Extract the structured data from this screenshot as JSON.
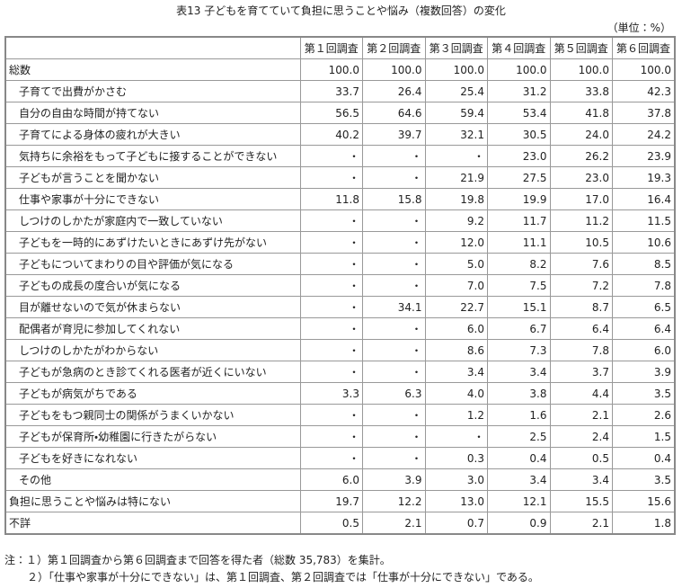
{
  "header": {
    "title": "表13 子どもを育てていて負担に思うことや悩み（複数回答）の変化",
    "unit": "（単位：%）"
  },
  "table": {
    "columns": [
      "第１回調査",
      "第２回調査",
      "第３回調査",
      "第４回調査",
      "第５回調査",
      "第６回調査"
    ],
    "rows": [
      [
        "総数",
        "100.0",
        "100.0",
        "100.0",
        "100.0",
        "100.0",
        "100.0"
      ],
      [
        "子育てで出費がかさむ",
        "33.7",
        "26.4",
        "25.4",
        "31.2",
        "33.8",
        "42.3"
      ],
      [
        "自分の自由な時間が持てない",
        "56.5",
        "64.6",
        "59.4",
        "53.4",
        "41.8",
        "37.8"
      ],
      [
        "子育てによる身体の疲れが大きい",
        "40.2",
        "39.7",
        "32.1",
        "30.5",
        "24.0",
        "24.2"
      ],
      [
        "気持ちに余裕をもって子どもに接することができない",
        "・",
        "・",
        "・",
        "23.0",
        "26.2",
        "23.9"
      ],
      [
        "子どもが言うことを聞かない",
        "・",
        "・",
        "21.9",
        "27.5",
        "23.0",
        "19.3"
      ],
      [
        "仕事や家事が十分にできない",
        "11.8",
        "15.8",
        "19.8",
        "19.9",
        "17.0",
        "16.4"
      ],
      [
        "しつけのしかたが家庭内で一致していない",
        "・",
        "・",
        "9.2",
        "11.7",
        "11.2",
        "11.5"
      ],
      [
        "子どもを一時的にあずけたいときにあずけ先がない",
        "・",
        "・",
        "12.0",
        "11.1",
        "10.5",
        "10.6"
      ],
      [
        "子どもについてまわりの目や評価が気になる",
        "・",
        "・",
        "5.0",
        "8.2",
        "7.6",
        "8.5"
      ],
      [
        "子どもの成長の度合いが気になる",
        "・",
        "・",
        "7.0",
        "7.5",
        "7.2",
        "7.8"
      ],
      [
        "目が離せないので気が休まらない",
        "・",
        "34.1",
        "22.7",
        "15.1",
        "8.7",
        "6.5"
      ],
      [
        "配偶者が育児に参加してくれない",
        "・",
        "・",
        "6.0",
        "6.7",
        "6.4",
        "6.4"
      ],
      [
        "しつけのしかたがわからない",
        "・",
        "・",
        "8.6",
        "7.3",
        "7.8",
        "6.0"
      ],
      [
        "子どもが急病のとき診てくれる医者が近くにいない",
        "・",
        "・",
        "3.4",
        "3.4",
        "3.7",
        "3.9"
      ],
      [
        "子どもが病気がちである",
        "3.3",
        "6.3",
        "4.0",
        "3.8",
        "4.4",
        "3.5"
      ],
      [
        "子どもをもつ親同士の関係がうまくいかない",
        "・",
        "・",
        "1.2",
        "1.6",
        "2.1",
        "2.6"
      ],
      [
        "子どもが保育所・幼稚園に行きたがらない",
        "・",
        "・",
        "・",
        "2.5",
        "2.4",
        "1.5"
      ],
      [
        "子どもを好きになれない",
        "・",
        "・",
        "0.3",
        "0.4",
        "0.5",
        "0.4"
      ],
      [
        "その他",
        "6.0",
        "3.9",
        "3.0",
        "3.4",
        "3.4",
        "3.5"
      ],
      [
        "負担に思うことや悩みは特にない",
        "19.7",
        "12.2",
        "13.0",
        "12.1",
        "15.5",
        "15.6"
      ],
      [
        "不詳",
        "0.5",
        "2.1",
        "0.7",
        "0.9",
        "2.1",
        "1.8"
      ]
    ]
  },
  "notes": [
    "注：１）第１回調査から第６回調査まで回答を得た者（総数 35,783）を集計。",
    "２）「仕事や家事が十分にできない」は、第１回調査、第２回調査では「仕事が十分にできない」である。"
  ]
}
